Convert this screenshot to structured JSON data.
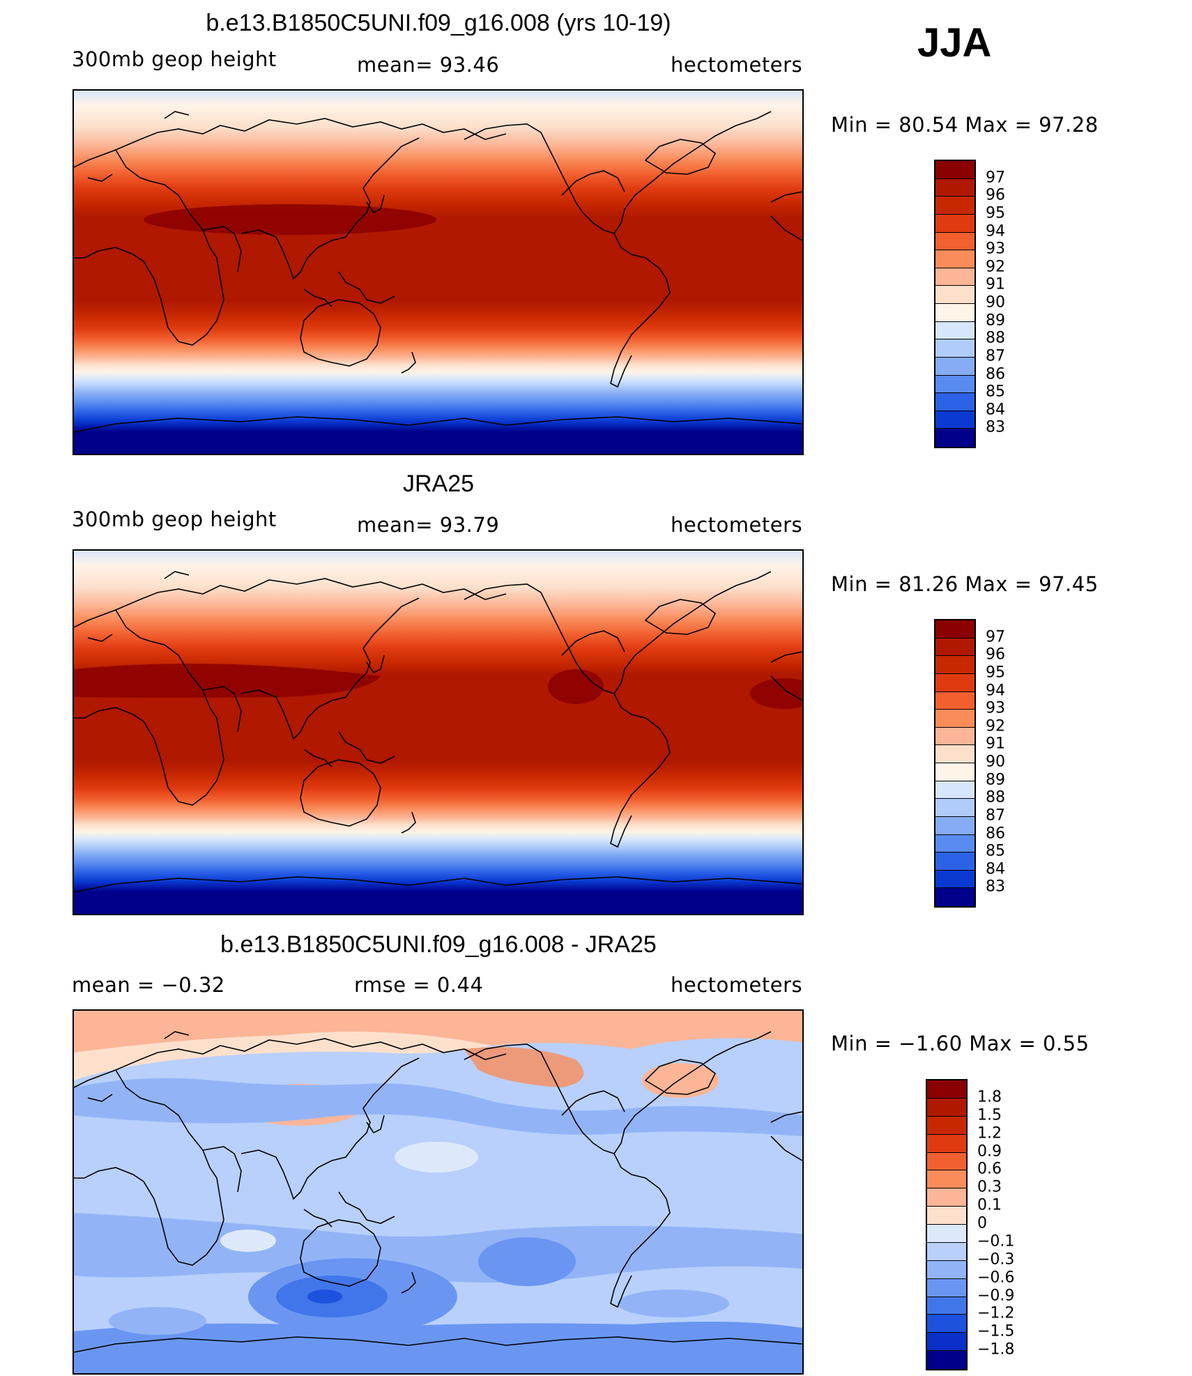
{
  "season": "JJA",
  "panels": [
    {
      "id": "model",
      "title": "b.e13.B1850C5UNI.f09_g16.008 (yrs 10-19)",
      "left_label": "300mb  geop  height",
      "center_label": "mean=   93.46",
      "right_label": "hectometers",
      "minmax": "Min  =    80.54  Max  =    97.28",
      "legend_labels": [
        "97",
        "96",
        "95",
        "94",
        "93",
        "92",
        "91",
        "90",
        "89",
        "88",
        "87",
        "86",
        "85",
        "84",
        "83"
      ],
      "legend_colors": [
        "#8b0000",
        "#b01800",
        "#c82800",
        "#e03b10",
        "#f26030",
        "#fa8c5a",
        "#fcb596",
        "#fde0cc",
        "#fff4e8",
        "#d6e6fb",
        "#b0cdfa",
        "#86acf5",
        "#5a8cf0",
        "#2c62e6",
        "#0a3ad2",
        "#00008b"
      ],
      "mean_value": 93.46,
      "min_value": 80.54,
      "max_value": 97.28
    },
    {
      "id": "obs",
      "title": "JRA25",
      "left_label": "300mb  geop  height",
      "center_label": "mean=   93.79",
      "right_label": "hectometers",
      "minmax": "Min  =    81.26  Max  =    97.45",
      "legend_labels": [
        "97",
        "96",
        "95",
        "94",
        "93",
        "92",
        "91",
        "90",
        "89",
        "88",
        "87",
        "86",
        "85",
        "84",
        "83"
      ],
      "legend_colors": [
        "#8b0000",
        "#b01800",
        "#c82800",
        "#e03b10",
        "#f26030",
        "#fa8c5a",
        "#fcb596",
        "#fde0cc",
        "#fff4e8",
        "#d6e6fb",
        "#b0cdfa",
        "#86acf5",
        "#5a8cf0",
        "#2c62e6",
        "#0a3ad2",
        "#00008b"
      ],
      "mean_value": 93.79,
      "min_value": 81.26,
      "max_value": 97.45
    },
    {
      "id": "diff",
      "title": "b.e13.B1850C5UNI.f09_g16.008 - JRA25",
      "left_label": "mean  =    −0.32",
      "center_label": "rmse  =     0.44",
      "right_label": "hectometers",
      "minmax": "Min  =    −1.60  Max  =      0.55",
      "legend_labels": [
        "1.8",
        "1.5",
        "1.2",
        "0.9",
        "0.6",
        "0.3",
        "0.1",
        "0",
        "−0.1",
        "−0.3",
        "−0.6",
        "−0.9",
        "−1.2",
        "−1.5",
        "−1.8"
      ],
      "legend_colors": [
        "#8b0000",
        "#b01800",
        "#c82800",
        "#e03b10",
        "#f26030",
        "#fa8c5a",
        "#fcb596",
        "#fde0cc",
        "#dde9fb",
        "#b8d0fb",
        "#92b4f7",
        "#6a96f2",
        "#4176ea",
        "#1c52de",
        "#0a30c8",
        "#00008b"
      ],
      "mean_value": -0.32,
      "rmse_value": 0.44,
      "min_value": -1.6,
      "max_value": 0.55
    }
  ]
}
